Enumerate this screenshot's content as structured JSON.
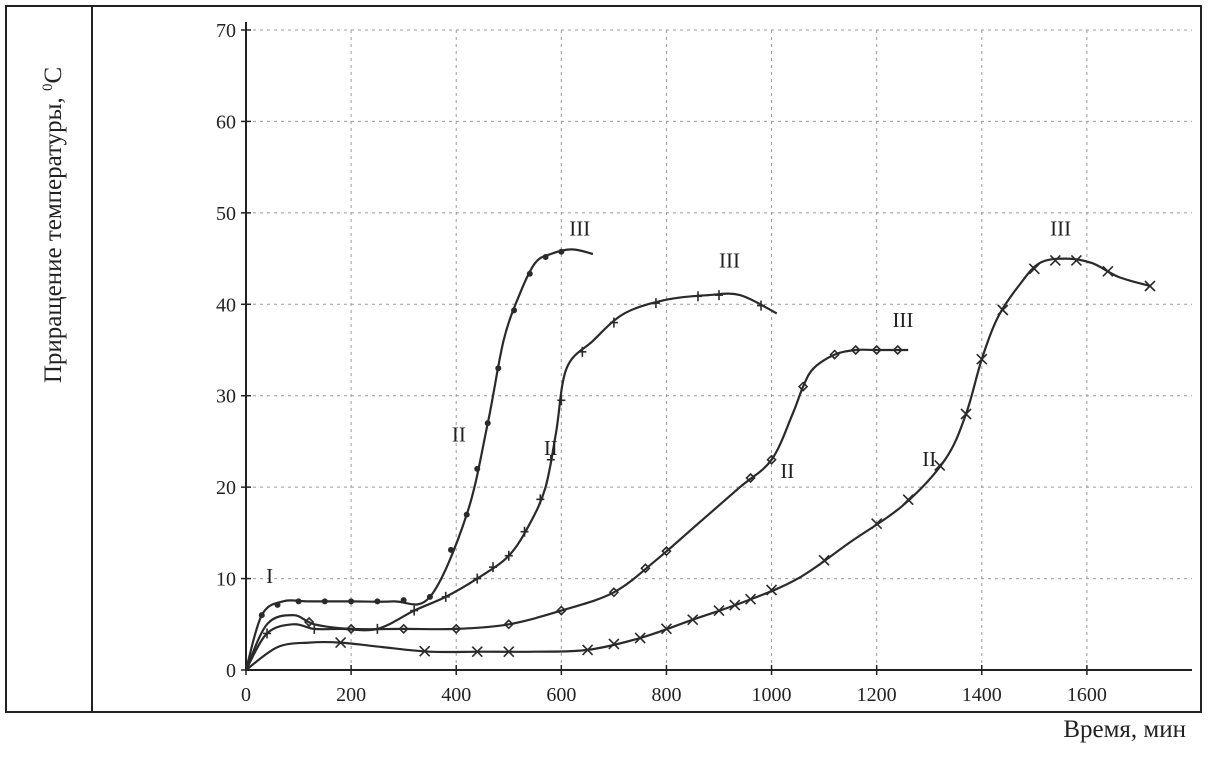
{
  "chart_data": {
    "type": "line",
    "title": "",
    "xlabel": "Время, мин",
    "ylabel": "Приращение температуры, ",
    "ylabel_unit": "0",
    "ylabel_unit_suffix": "C",
    "xlim": [
      0,
      1800
    ],
    "ylim": [
      0,
      70
    ],
    "xticks": [
      0,
      200,
      400,
      600,
      800,
      1000,
      1200,
      1400,
      1600
    ],
    "yticks": [
      0,
      10,
      20,
      30,
      40,
      50,
      60,
      70
    ],
    "grid": true,
    "series": [
      {
        "marker": "dot",
        "x": [
          0,
          30,
          70,
          120,
          200,
          280,
          350,
          420,
          460,
          490,
          520,
          550,
          580,
          620,
          660
        ],
        "y": [
          0,
          6,
          7.5,
          7.5,
          7.5,
          7.5,
          8,
          17,
          27,
          36,
          41,
          44.5,
          45.5,
          46,
          45.5
        ],
        "markers_x": [
          30,
          60,
          100,
          150,
          200,
          250,
          300,
          350,
          390,
          420,
          440,
          460,
          480,
          510,
          540,
          570,
          600
        ]
      },
      {
        "marker": "plus",
        "x": [
          0,
          40,
          90,
          130,
          180,
          250,
          320,
          380,
          440,
          500,
          540,
          570,
          590,
          610,
          660,
          720,
          800,
          880,
          940,
          1010
        ],
        "y": [
          0,
          4,
          5,
          4.5,
          4.5,
          4.5,
          6.5,
          8,
          10,
          12.5,
          16,
          20,
          26,
          33,
          36,
          39,
          40.5,
          41,
          41,
          39
        ],
        "markers_x": [
          40,
          130,
          250,
          320,
          380,
          440,
          470,
          500,
          530,
          560,
          580,
          600,
          640,
          700,
          780,
          860,
          900,
          980
        ]
      },
      {
        "marker": "diamond",
        "x": [
          0,
          40,
          90,
          130,
          200,
          300,
          400,
          500,
          600,
          700,
          780,
          860,
          940,
          1000,
          1040,
          1060,
          1080,
          1120,
          1160,
          1200,
          1260
        ],
        "y": [
          0,
          5,
          6,
          5,
          4.5,
          4.5,
          4.5,
          5,
          6.5,
          8.5,
          12,
          16,
          20,
          23,
          28,
          31,
          33,
          34.5,
          35,
          35,
          35
        ],
        "markers_x": [
          120,
          200,
          300,
          400,
          500,
          600,
          700,
          760,
          800,
          960,
          1000,
          1060,
          1120,
          1160,
          1200,
          1240
        ]
      },
      {
        "marker": "cross",
        "x": [
          0,
          60,
          120,
          180,
          260,
          350,
          450,
          550,
          650,
          750,
          850,
          950,
          1050,
          1150,
          1250,
          1330,
          1370,
          1400,
          1430,
          1470,
          1510,
          1560,
          1610,
          1660,
          1720
        ],
        "y": [
          0,
          2.5,
          3,
          3,
          2.5,
          2,
          2,
          2,
          2.2,
          3.5,
          5.5,
          7.5,
          10,
          14,
          18,
          23,
          28,
          34,
          38.5,
          42,
          44.5,
          45,
          44.5,
          43,
          42
        ],
        "markers_x": [
          180,
          340,
          440,
          500,
          650,
          700,
          750,
          800,
          850,
          900,
          930,
          960,
          1000,
          1100,
          1200,
          1260,
          1320,
          1370,
          1400,
          1440,
          1500,
          1540,
          1580,
          1640,
          1720
        ]
      }
    ],
    "annotations": [
      {
        "text": "I",
        "x": 45,
        "y": 9.5
      },
      {
        "text": "II",
        "x": 405,
        "y": 25
      },
      {
        "text": "III",
        "x": 635,
        "y": 47.5
      },
      {
        "text": "II",
        "x": 580,
        "y": 23.5
      },
      {
        "text": "III",
        "x": 920,
        "y": 44
      },
      {
        "text": "II",
        "x": 1030,
        "y": 21
      },
      {
        "text": "III",
        "x": 1250,
        "y": 37.5
      },
      {
        "text": "II",
        "x": 1300,
        "y": 22.3
      },
      {
        "text": "III",
        "x": 1550,
        "y": 47.5
      }
    ]
  }
}
